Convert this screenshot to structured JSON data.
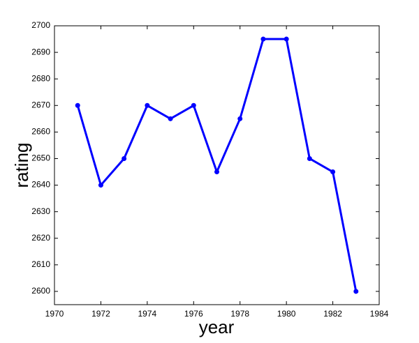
{
  "chart_data": {
    "type": "line",
    "x_label": "year",
    "y_label": "rating",
    "x": [
      1971,
      1972,
      1973,
      1974,
      1975,
      1976,
      1977,
      1978,
      1979,
      1980,
      1981,
      1982,
      1983
    ],
    "values": [
      2670,
      2640,
      2650,
      2670,
      2665,
      2670,
      2645,
      2665,
      2695,
      2695,
      2650,
      2645,
      2600
    ],
    "color": "#0000ff",
    "xlim": [
      1970,
      1984
    ],
    "xticks": [
      1970,
      1972,
      1974,
      1976,
      1978,
      1980,
      1982,
      1984
    ],
    "ylim": [
      2595,
      2700
    ],
    "yticks": [
      2600,
      2610,
      2620,
      2630,
      2640,
      2650,
      2660,
      2670,
      2680,
      2690,
      2700
    ],
    "grid": false
  }
}
